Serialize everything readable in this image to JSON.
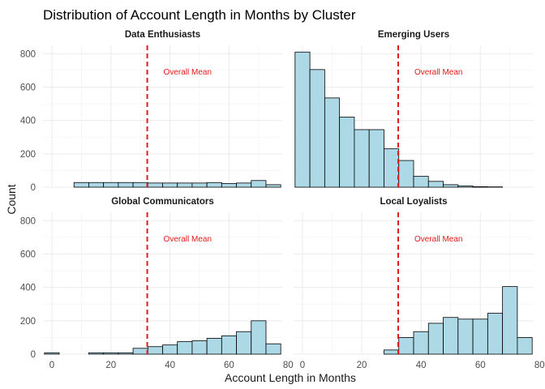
{
  "chart_data": {
    "type": "bar",
    "title": "Distribution of Account Length in Months by Cluster",
    "xlabel": "Account Length in Months",
    "ylabel": "Count",
    "xlim": [
      -3,
      78
    ],
    "ylim": [
      0,
      850
    ],
    "x_ticks": [
      0,
      20,
      40,
      60,
      80
    ],
    "y_ticks": [
      0,
      200,
      400,
      600,
      800
    ],
    "bin_edges": [
      -2.5,
      2.5,
      7.5,
      12.5,
      17.5,
      22.5,
      27.5,
      32.5,
      37.5,
      42.5,
      47.5,
      52.5,
      57.5,
      62.5,
      67.5,
      72.5,
      77.5
    ],
    "grid": true,
    "legend": "none",
    "bar_fill": "#add8e6",
    "bar_stroke": "#000000",
    "reference_line": {
      "x": 32.3,
      "label": "Overall Mean",
      "color": "#e41a1c",
      "style": "dashed"
    },
    "series": [
      {
        "name": "Data Enthusiasts",
        "values": [
          0,
          0,
          28,
          28,
          28,
          28,
          28,
          25,
          25,
          25,
          25,
          28,
          22,
          25,
          40,
          15
        ]
      },
      {
        "name": "Emerging Users",
        "values": [
          810,
          705,
          535,
          420,
          345,
          345,
          230,
          160,
          65,
          35,
          15,
          8,
          3,
          2,
          0,
          0
        ]
      },
      {
        "name": "Global Communicators",
        "values": [
          8,
          0,
          0,
          8,
          8,
          8,
          35,
          45,
          55,
          75,
          80,
          95,
          110,
          135,
          200,
          62
        ]
      },
      {
        "name": "Local Loyalists",
        "values": [
          0,
          0,
          0,
          0,
          0,
          0,
          25,
          100,
          135,
          185,
          220,
          210,
          210,
          245,
          405,
          100
        ]
      }
    ]
  }
}
